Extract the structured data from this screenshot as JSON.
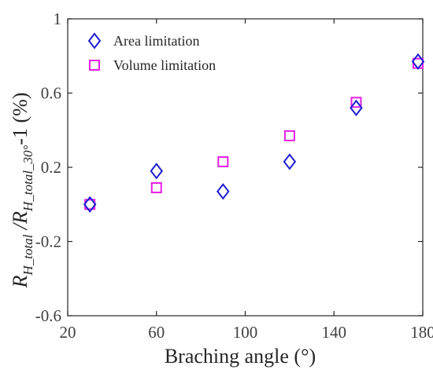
{
  "chart_data": {
    "type": "scatter",
    "xlabel": "Braching angle (°)",
    "ylabel_main": "R",
    "ylabel_sub1": "H_total",
    "ylabel_mid": " /R",
    "ylabel_sub2": "H_total_30°",
    "ylabel_suffix": "-1 (%)",
    "xlim": [
      20,
      180
    ],
    "ylim": [
      -0.6,
      1.0
    ],
    "xticks": [
      20,
      60,
      100,
      140,
      180
    ],
    "yticks": [
      -0.6,
      -0.2,
      0.2,
      0.6,
      1.0
    ],
    "xtick_labels": [
      "20",
      "60",
      "100",
      "140",
      "180"
    ],
    "ytick_labels": [
      "-0.6",
      "-0.2",
      "0.2",
      "0.6",
      "1"
    ],
    "legend_position": "top-left",
    "series": [
      {
        "name": "Area limitation",
        "marker": "diamond",
        "color": "#1f1fd1",
        "points": [
          {
            "x": 30,
            "y": 0.0
          },
          {
            "x": 60,
            "y": 0.18
          },
          {
            "x": 90,
            "y": 0.07
          },
          {
            "x": 120,
            "y": 0.23
          },
          {
            "x": 150,
            "y": 0.52
          },
          {
            "x": 181,
            "y": 0.77
          }
        ]
      },
      {
        "name": "Volume limitation",
        "marker": "square",
        "color": "#e61ee6",
        "points": [
          {
            "x": 30,
            "y": 0.0
          },
          {
            "x": 60,
            "y": 0.09
          },
          {
            "x": 90,
            "y": 0.23
          },
          {
            "x": 120,
            "y": 0.37
          },
          {
            "x": 150,
            "y": 0.55
          },
          {
            "x": 181,
            "y": 0.76
          }
        ]
      }
    ]
  }
}
